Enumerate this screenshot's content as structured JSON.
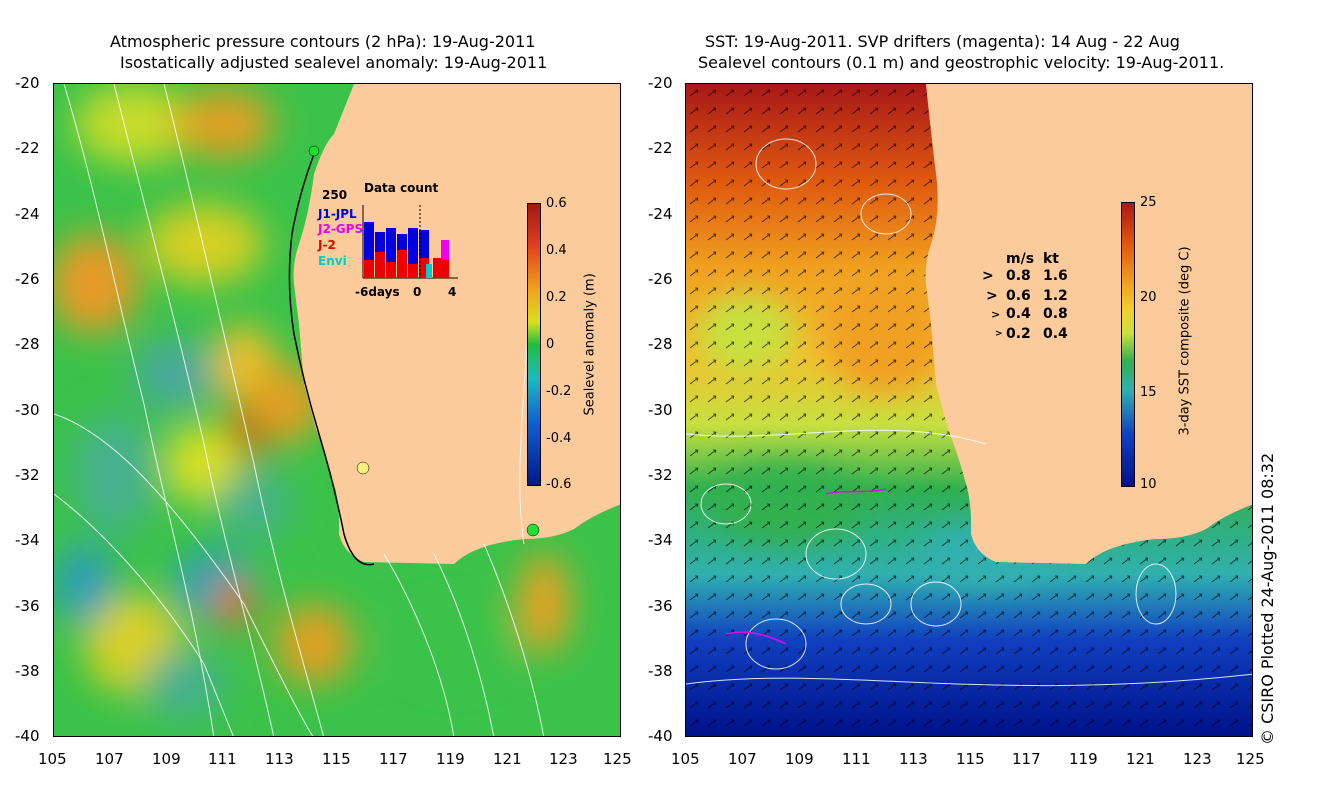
{
  "left_panel": {
    "title_line1": "Atmospheric pressure contours (2 hPa): 19-Aug-2011",
    "title_line2": "Isostatically adjusted sealevel anomaly: 19-Aug-2011",
    "colorbar": {
      "label": "Sealevel anomaly (m)",
      "ticks": [
        "0.6",
        "0.4",
        "0.2",
        "0",
        "-0.2",
        "-0.4",
        "-0.6"
      ]
    },
    "inset": {
      "title": "Data count",
      "max_label": "250",
      "missions": [
        "J1-JPL",
        "J2-GPS",
        "J-2",
        "Envi"
      ],
      "mission_colors": [
        "#0000dd",
        "#ee00ee",
        "#ee0000",
        "#00cccc"
      ],
      "x_labels": [
        "-6days",
        "0",
        "4"
      ]
    }
  },
  "right_panel": {
    "title_line1": "SST: 19-Aug-2011. SVP drifters (magenta): 14 Aug - 22 Aug",
    "title_line2": "Sealevel contours (0.1 m) and geostrophic velocity: 19-Aug-2011.",
    "colorbar": {
      "label": "3-day SST composite (deg C)",
      "ticks": [
        "25",
        "20",
        "15",
        "10"
      ]
    },
    "legend": {
      "header_ms": "m/s",
      "header_kt": "kt",
      "rows": [
        {
          "ms": "0.8",
          "kt": "1.6"
        },
        {
          "ms": "0.6",
          "kt": "1.2"
        },
        {
          "ms": "0.4",
          "kt": "0.8"
        },
        {
          "ms": "0.2",
          "kt": "0.4"
        }
      ]
    }
  },
  "axes": {
    "y_ticks": [
      "-20",
      "-22",
      "-24",
      "-26",
      "-28",
      "-30",
      "-32",
      "-34",
      "-36",
      "-38",
      "-40"
    ],
    "x_ticks": [
      "105",
      "107",
      "109",
      "111",
      "113",
      "115",
      "117",
      "119",
      "121",
      "123",
      "125"
    ]
  },
  "copyright": "© CSIRO Plotted 24-Aug-2011 08:32",
  "colors": {
    "land": "#fbcb9b",
    "anomaly_high": "#a01818",
    "anomaly_zero": "#1fbf3f",
    "anomaly_low": "#001a88",
    "sst_warm": "#a81818",
    "sst_cold": "#00108a"
  }
}
